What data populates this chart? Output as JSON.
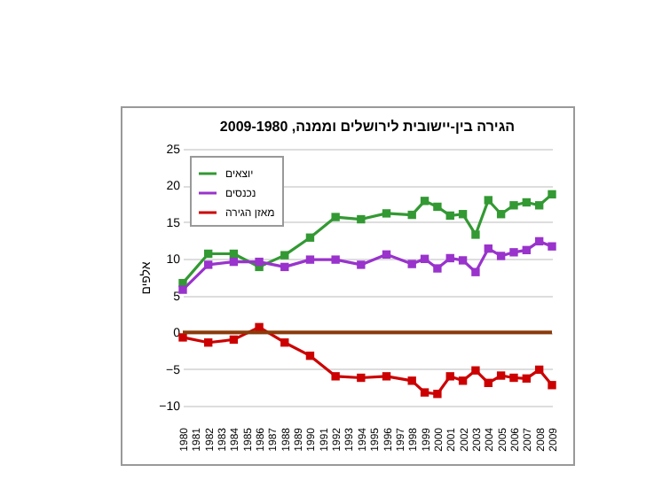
{
  "chart_data": {
    "type": "line",
    "title": "הגירה בין-יישובית לירושלים וממנה, 2009-1980",
    "ylabel": "אלפים",
    "x": [
      1980,
      1982,
      1984,
      1986,
      1988,
      1990,
      1992,
      1994,
      1996,
      1998,
      1999,
      2000,
      2001,
      2002,
      2003,
      2004,
      2005,
      2006,
      2007,
      2008,
      2009
    ],
    "series": [
      {
        "name": "יוצאים",
        "color": "#339933",
        "values": [
          6.7,
          10.7,
          10.7,
          8.9,
          10.5,
          12.9,
          15.7,
          15.4,
          16.2,
          16.0,
          17.9,
          17.1,
          15.9,
          16.1,
          13.3,
          18.0,
          16.1,
          17.3,
          17.7,
          17.3,
          18.8
        ]
      },
      {
        "name": "נכנסים",
        "color": "#9933cc",
        "values": [
          5.8,
          9.2,
          9.6,
          9.6,
          8.9,
          9.9,
          9.9,
          9.2,
          10.6,
          9.3,
          10.0,
          8.7,
          10.1,
          9.8,
          8.2,
          11.4,
          10.4,
          10.9,
          11.2,
          12.4,
          11.7
        ]
      },
      {
        "name": "מאזן הגירה",
        "color": "#cc0000",
        "values": [
          -0.7,
          -1.4,
          -1.0,
          0.7,
          -1.4,
          -3.2,
          -6.0,
          -6.2,
          -6.0,
          -6.6,
          -8.2,
          -8.4,
          -6.0,
          -6.6,
          -5.2,
          -6.9,
          -5.9,
          -6.2,
          -6.3,
          -5.1,
          -7.2
        ]
      }
    ],
    "xlim": [
      1980,
      2009
    ],
    "xticks": [
      1980,
      1981,
      1982,
      1983,
      1984,
      1985,
      1986,
      1987,
      1988,
      1989,
      1990,
      1991,
      1992,
      1993,
      1994,
      1995,
      1996,
      1997,
      1998,
      1999,
      2000,
      2001,
      2002,
      2003,
      2004,
      2005,
      2006,
      2007,
      2008,
      2009
    ],
    "ylim": [
      -10,
      25
    ],
    "yticks": [
      -10,
      -5,
      0,
      5,
      10,
      15,
      20,
      25
    ],
    "ref_lines": [
      {
        "axis": "y",
        "value": 0,
        "color": "#8b3a0a"
      }
    ],
    "grid": "y",
    "legend": "top left",
    "marker": "square"
  }
}
